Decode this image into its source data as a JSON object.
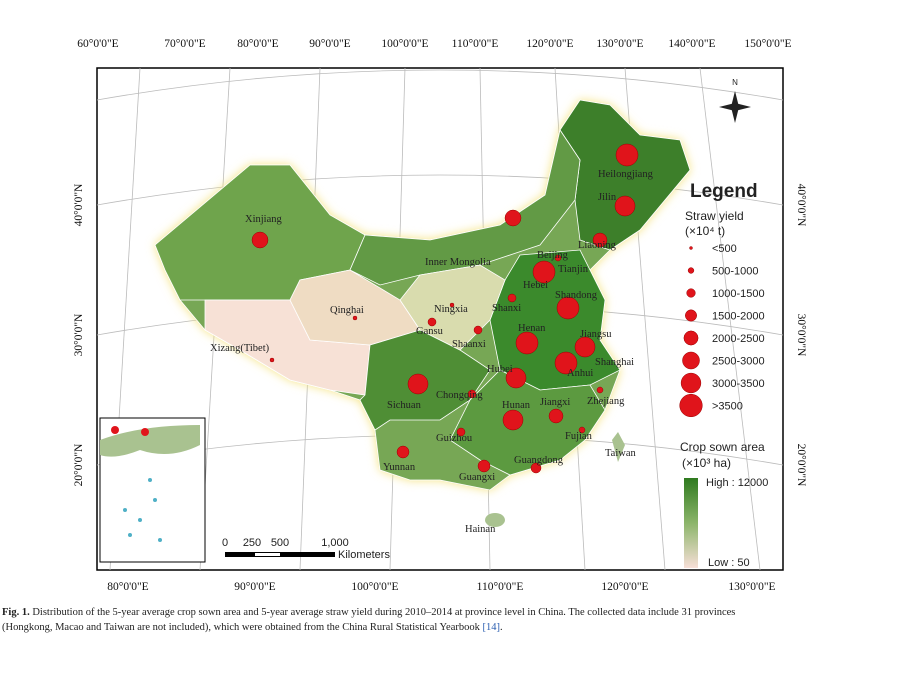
{
  "map": {
    "top_longitudes": [
      "60°0'0\"E",
      "70°0'0\"E",
      "80°0'0\"E",
      "90°0'0\"E",
      "100°0'0\"E",
      "110°0'0\"E",
      "120°0'0\"E",
      "130°0'0\"E",
      "140°0'0\"E",
      "150°0'0\"E"
    ],
    "bottom_longitudes": [
      "80°0'0\"E",
      "90°0'0\"E",
      "100°0'0\"E",
      "110°0'0\"E",
      "120°0'0\"E",
      "130°0'0\"E"
    ],
    "left_latitudes": [
      "40°0'0\"N",
      "30°0'0\"N",
      "20°0'0\"N"
    ],
    "right_latitudes": [
      "40°0'0\"N",
      "30°0'0\"N",
      "20°0'0\"N"
    ],
    "provinces": [
      "Heilongjiang",
      "Jilin",
      "Liaoning",
      "Xinjiang",
      "Inner Mongolia",
      "Beijing",
      "Tianjin",
      "Hebei",
      "Shandong",
      "Qinghai",
      "Ningxia",
      "Shanxi",
      "Gansu",
      "Shaanxi",
      "Henan",
      "Jiangsu",
      "Xizang(Tibet)",
      "Anhui",
      "Shanghai",
      "Hubei",
      "Chongqing",
      "Sichuan",
      "Zhejiang",
      "Hunan",
      "Jiangxi",
      "Fujian",
      "Guizhou",
      "Taiwan",
      "Yunnan",
      "Guangxi",
      "Guangdong",
      "Hainan"
    ],
    "north": "N",
    "scale": {
      "ticks": [
        "0",
        "250",
        "500",
        "1,000"
      ],
      "unit": "Kilometers"
    }
  },
  "legend": {
    "title": "Legend",
    "straw_title": "Straw yield",
    "straw_unit": "(×10⁴ t)",
    "straw_classes": [
      "<500",
      "500-1000",
      "1000-1500",
      "1500-2000",
      "2000-2500",
      "2500-3000",
      "3000-3500",
      ">3500"
    ],
    "area_title": "Crop sown area",
    "area_unit": "(×10³ ha)",
    "high": "High : 12000",
    "low": "Low : 50"
  },
  "caption": {
    "label": "Fig. 1.",
    "line1": "Distribution of the 5-year average crop sown area and 5-year average straw yield during 2010–2014 at province level in China. The collected data include 31 provinces",
    "line2": "(Hongkong, Macao and Taiwan are not included), which were obtained from the China Rural Statistical Yearbook",
    "ref": "[14]",
    "end": "."
  }
}
